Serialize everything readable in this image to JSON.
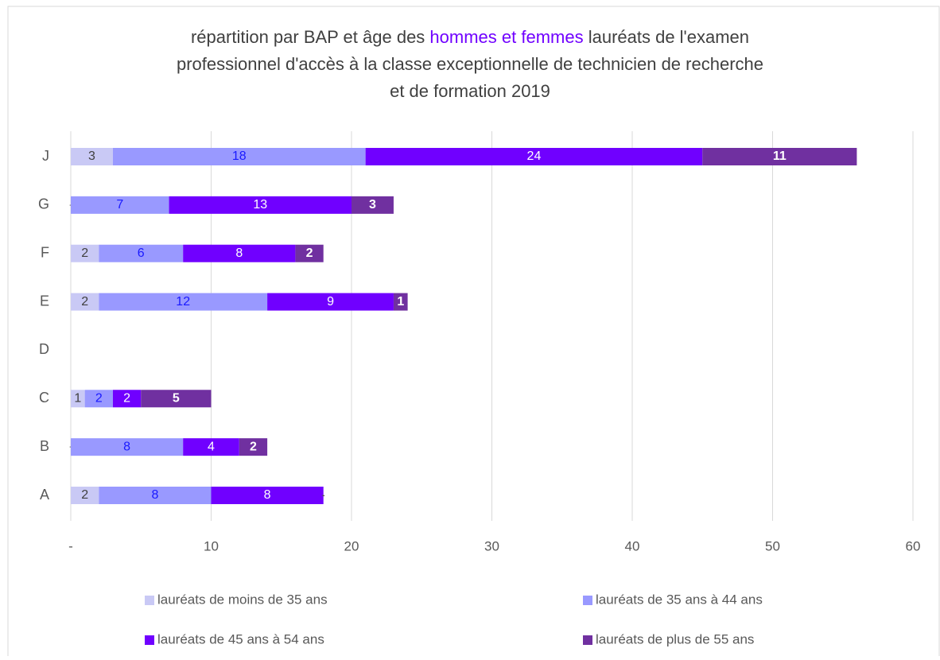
{
  "chart_data": {
    "type": "stacked_bar_horizontal",
    "title": [
      [
        "répartition par BAP et âge des ",
        "hommes et femmes",
        " lauréats de l'examen"
      ],
      [
        "professionnel d'accès à la classe exceptionnelle de technicien  de recherche"
      ],
      [
        "et de formation 2019"
      ]
    ],
    "title_color": "#404040",
    "title_highlight_color": "#7000ff",
    "categories": [
      "J",
      "G",
      "F",
      "E",
      "D",
      "C",
      "B",
      "A"
    ],
    "series": [
      {
        "name": "lauréats de moins de 35 ans",
        "color": "#c9c9f5",
        "label_color": "#404040",
        "values": [
          3,
          0,
          2,
          2,
          0,
          1,
          0,
          2
        ],
        "value_labels": [
          "3",
          "-",
          "2",
          "2",
          null,
          "1",
          "-",
          "2"
        ]
      },
      {
        "name": "lauréats de 35 ans à 44 ans",
        "color": "#9999ff",
        "label_color": "#1a1aff",
        "values": [
          18,
          7,
          6,
          12,
          0,
          2,
          8,
          8
        ],
        "value_labels": [
          "18",
          "7",
          "6",
          "12",
          null,
          "2",
          "8",
          "8"
        ]
      },
      {
        "name": "lauréats de 45 ans à 54 ans",
        "color": "#7000ff",
        "label_color": "#ffffff",
        "values": [
          24,
          13,
          8,
          9,
          0,
          2,
          4,
          8
        ],
        "value_labels": [
          "24",
          "13",
          "8",
          "9",
          null,
          "2",
          "4",
          "8"
        ]
      },
      {
        "name": "lauréats de plus de 55 ans",
        "color": "#7030a0",
        "label_color": "#ffffff",
        "values": [
          11,
          3,
          2,
          1,
          0,
          5,
          2,
          0
        ],
        "value_labels": [
          "11",
          "3",
          "2",
          "1",
          null,
          "5",
          "2",
          "-"
        ]
      }
    ],
    "xlim": [
      0,
      60
    ],
    "xticks": [
      {
        "value": 0,
        "label": "-"
      },
      10,
      20,
      30,
      40,
      50,
      60
    ],
    "grid": true,
    "legend": "bottom"
  }
}
